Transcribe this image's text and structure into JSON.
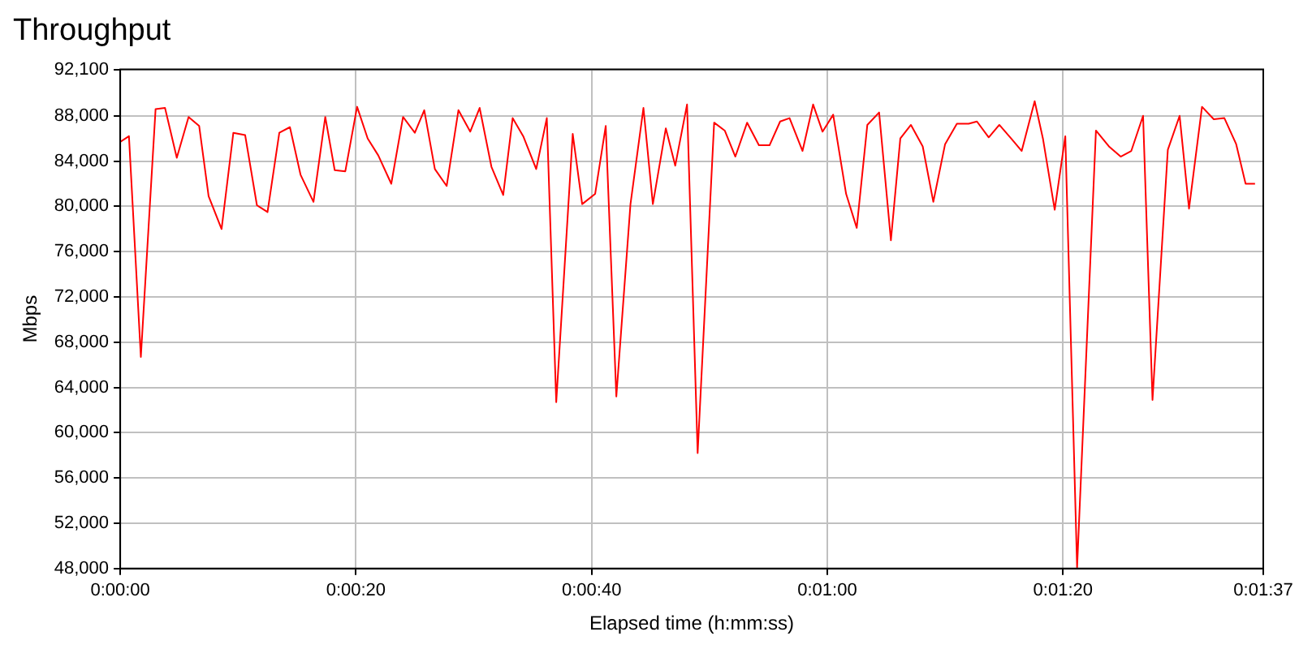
{
  "chart_data": {
    "type": "line",
    "title": "Throughput",
    "xlabel": "Elapsed time (h:mm:ss)",
    "ylabel": "Mbps",
    "x": [
      0,
      0.74,
      1.75,
      3.0,
      3.8,
      4.8,
      5.8,
      6.7,
      7.5,
      8.6,
      9.6,
      10.6,
      11.6,
      12.5,
      13.5,
      14.4,
      15.3,
      16.4,
      17.4,
      18.2,
      19.1,
      20.1,
      21.0,
      21.9,
      23.0,
      24.0,
      25.0,
      25.8,
      26.7,
      27.7,
      28.7,
      29.7,
      30.5,
      31.5,
      32.5,
      33.3,
      34.2,
      35.3,
      36.2,
      37.0,
      38.4,
      39.2,
      40.3,
      41.2,
      42.1,
      43.3,
      44.4,
      45.2,
      46.3,
      47.1,
      48.1,
      49.0,
      50.4,
      51.3,
      52.2,
      53.2,
      54.2,
      55.1,
      56.0,
      56.8,
      57.9,
      58.8,
      59.6,
      60.5,
      61.6,
      62.5,
      63.4,
      64.4,
      65.4,
      66.2,
      67.1,
      68.1,
      69.0,
      70.0,
      71.0,
      72.0,
      72.7,
      73.7,
      74.6,
      75.6,
      76.5,
      77.6,
      78.3,
      79.3,
      80.2,
      81.2,
      82.8,
      83.9,
      84.9,
      85.8,
      86.8,
      87.6,
      88.9,
      89.9,
      90.7,
      91.8,
      92.8,
      93.7,
      94.7,
      95.5,
      96.3
    ],
    "series": [
      {
        "color": "#ff0000",
        "values": [
          85700,
          86200,
          66700,
          88600,
          88700,
          84300,
          87900,
          87100,
          80900,
          78000,
          86500,
          86300,
          80100,
          79500,
          86500,
          87000,
          82800,
          80400,
          87900,
          83200,
          83100,
          88800,
          86000,
          84500,
          82000,
          87900,
          86500,
          88500,
          83300,
          81800,
          88500,
          86600,
          88700,
          83500,
          81000,
          87800,
          86200,
          83300,
          87800,
          62700,
          86400,
          80200,
          81100,
          87100,
          63200,
          80200,
          88700,
          80200,
          86900,
          83600,
          89000,
          58200,
          87400,
          86700,
          84400,
          87400,
          85400,
          85400,
          87500,
          87800,
          84900,
          89000,
          86600,
          88100,
          81100,
          78100,
          87200,
          88300,
          77000,
          86000,
          87200,
          85300,
          80400,
          85500,
          87300,
          87300,
          87500,
          86100,
          87200,
          86000,
          84900,
          89300,
          86000,
          79700,
          86200,
          48100,
          86700,
          85300,
          84400,
          84900,
          88000,
          62900,
          85000,
          88000,
          79800,
          88800,
          87700,
          87800,
          85500,
          82000,
          82000
        ]
      }
    ],
    "xlim": [
      0,
      97
    ],
    "xticks": [
      {
        "value": 0,
        "label": "0:00:00"
      },
      {
        "value": 20,
        "label": "0:00:20"
      },
      {
        "value": 40,
        "label": "0:00:40"
      },
      {
        "value": 60,
        "label": "0:01:00"
      },
      {
        "value": 80,
        "label": "0:01:20"
      },
      {
        "value": 97,
        "label": "0:01:37"
      }
    ],
    "ylim": [
      48000,
      92100
    ],
    "yticks": [
      {
        "value": 48000,
        "label": "48,000"
      },
      {
        "value": 52000,
        "label": "52,000"
      },
      {
        "value": 56000,
        "label": "56,000"
      },
      {
        "value": 60000,
        "label": "60,000"
      },
      {
        "value": 64000,
        "label": "64,000"
      },
      {
        "value": 68000,
        "label": "68,000"
      },
      {
        "value": 72000,
        "label": "72,000"
      },
      {
        "value": 76000,
        "label": "76,000"
      },
      {
        "value": 80000,
        "label": "80,000"
      },
      {
        "value": 84000,
        "label": "84,000"
      },
      {
        "value": 88000,
        "label": "88,000"
      },
      {
        "value": 92100,
        "label": "92,100"
      }
    ],
    "grid": true,
    "legend": false,
    "marker": "none",
    "line_style": "solid"
  }
}
